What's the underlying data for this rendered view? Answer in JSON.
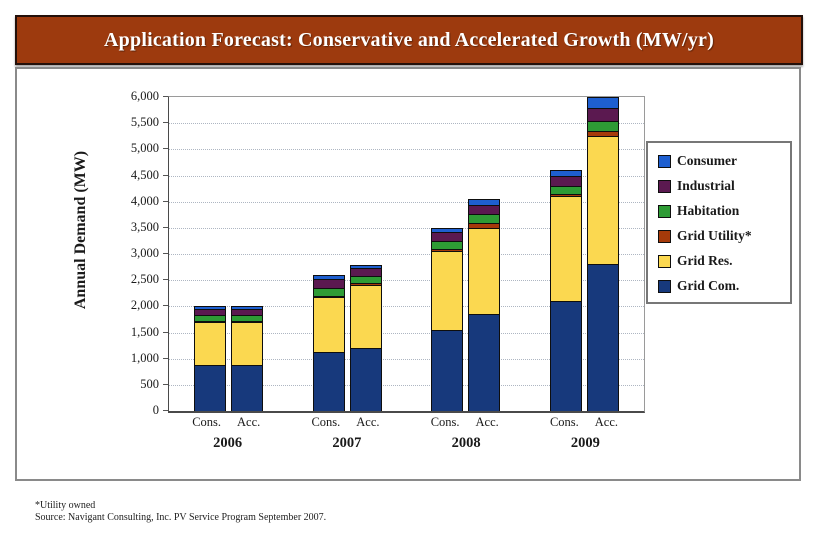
{
  "banner": {
    "title": "Application Forecast: Conservative and Accelerated Growth (MW/yr)"
  },
  "colors": {
    "banner_bg": "#9d3a0e",
    "box_border": "#8a8a8a",
    "grid_line": "#aeb6c2",
    "axis_line": "#4a4a4a"
  },
  "chart_data": {
    "type": "bar",
    "stacked": true,
    "title": "Application Forecast: Conservative and Accelerated Growth (MW/yr)",
    "ylabel": "Annual Demand (MW)",
    "ylim": [
      0,
      6000
    ],
    "ytick_step": 500,
    "ytick_labels": [
      "0",
      "500",
      "1,000",
      "1,500",
      "2,000",
      "2,500",
      "3,000",
      "3,500",
      "4,000",
      "4,500",
      "5,000",
      "5,500",
      "6,000"
    ],
    "grid": true,
    "group_labels": [
      "2006",
      "2007",
      "2008",
      "2009"
    ],
    "bar_sublabels": [
      "Cons.",
      "Acc."
    ],
    "columns": [
      "2006 Cons.",
      "2006 Acc.",
      "2007 Cons.",
      "2007 Acc.",
      "2008 Cons.",
      "2008 Acc.",
      "2009 Cons.",
      "2009 Acc."
    ],
    "series": [
      {
        "name": "Grid Com.",
        "color": "#17397c",
        "values": [
          875,
          875,
          1125,
          1200,
          1550,
          1850,
          2100,
          2800
        ]
      },
      {
        "name": "Grid Res.",
        "color": "#fbd850",
        "values": [
          825,
          825,
          1050,
          1200,
          1500,
          1650,
          2000,
          2450
        ]
      },
      {
        "name": "Grid Utility*",
        "color": "#a63a0a",
        "values": [
          15,
          15,
          25,
          50,
          50,
          100,
          50,
          100
        ]
      },
      {
        "name": "Habitation",
        "color": "#2e9b35",
        "values": [
          110,
          110,
          150,
          125,
          150,
          160,
          150,
          200
        ]
      },
      {
        "name": "Industrial",
        "color": "#5b1950",
        "values": [
          115,
          115,
          175,
          150,
          175,
          170,
          200,
          250
        ]
      },
      {
        "name": "Consumer",
        "color": "#1e5fd0",
        "values": [
          60,
          60,
          75,
          75,
          75,
          120,
          100,
          200
        ]
      }
    ],
    "totals": [
      2000,
      2000,
      2600,
      2800,
      3500,
      4050,
      4600,
      6000
    ],
    "legend": {
      "position": "right",
      "items": [
        "Consumer",
        "Industrial",
        "Habitation",
        "Grid Utility*",
        "Grid Res.",
        "Grid Com."
      ]
    }
  },
  "footnotes": {
    "line1": "*Utility owned",
    "line2": "Source: Navigant Consulting, Inc. PV Service Program September 2007."
  }
}
